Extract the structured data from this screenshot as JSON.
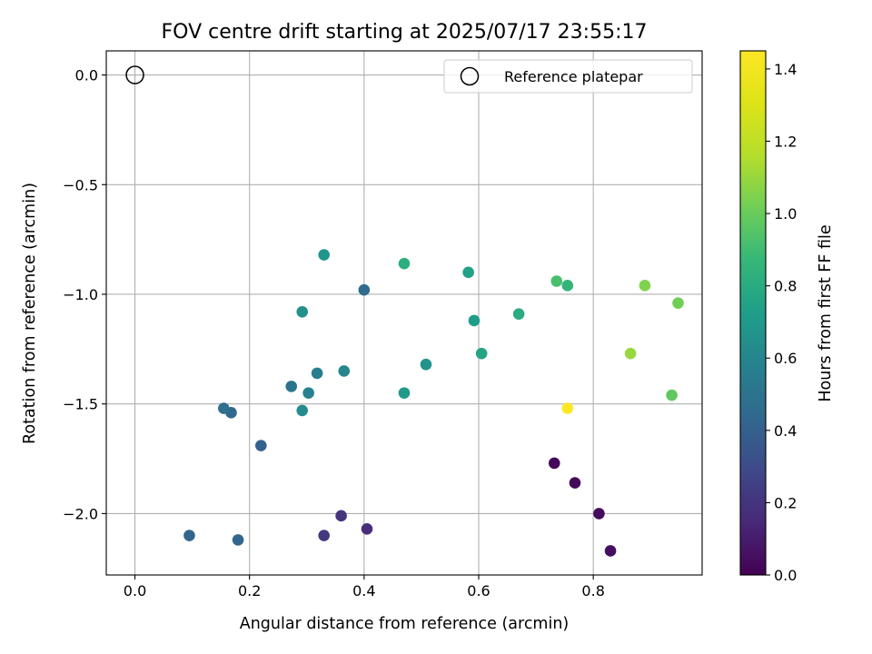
{
  "chart_data": {
    "type": "scatter",
    "title": "FOV centre drift starting at 2025/07/17 23:55:17",
    "xlabel": "Angular distance from reference (arcmin)",
    "ylabel": "Rotation from reference (arcmin)",
    "xlim": [
      -0.05,
      0.99
    ],
    "ylim": [
      -2.28,
      0.11
    ],
    "xticks": [
      0.0,
      0.2,
      0.4,
      0.6,
      0.8
    ],
    "xtick_labels": [
      "0.0",
      "0.2",
      "0.4",
      "0.6",
      "0.8"
    ],
    "yticks": [
      0.0,
      -0.5,
      -1.0,
      -1.5,
      -2.0
    ],
    "ytick_labels": [
      "0.0",
      "−0.5",
      "−1.0",
      "−1.5",
      "−2.0"
    ],
    "grid": true,
    "legend": {
      "position": "top-right",
      "entries": [
        "Reference platepar"
      ]
    },
    "colorbar": {
      "label": "Hours from first FF file",
      "colormap": "viridis",
      "range": [
        0.0,
        1.45
      ],
      "ticks": [
        0.0,
        0.2,
        0.4,
        0.6,
        0.8,
        1.0,
        1.2,
        1.4
      ],
      "tick_labels": [
        "0.0",
        "0.2",
        "0.4",
        "0.6",
        "0.8",
        "1.0",
        "1.2",
        "1.4"
      ]
    },
    "reference_point": {
      "name": "Reference platepar",
      "x": 0.0,
      "y": 0.0
    },
    "points": [
      {
        "x": 0.732,
        "y": -1.77,
        "hours": 0.02
      },
      {
        "x": 0.768,
        "y": -1.86,
        "hours": 0.03
      },
      {
        "x": 0.81,
        "y": -2.0,
        "hours": 0.04
      },
      {
        "x": 0.83,
        "y": -2.17,
        "hours": 0.05
      },
      {
        "x": 0.405,
        "y": -2.07,
        "hours": 0.17
      },
      {
        "x": 0.36,
        "y": -2.01,
        "hours": 0.2
      },
      {
        "x": 0.33,
        "y": -2.1,
        "hours": 0.22
      },
      {
        "x": 0.095,
        "y": -2.1,
        "hours": 0.42
      },
      {
        "x": 0.18,
        "y": -2.12,
        "hours": 0.43
      },
      {
        "x": 0.22,
        "y": -1.69,
        "hours": 0.4
      },
      {
        "x": 0.168,
        "y": -1.54,
        "hours": 0.44
      },
      {
        "x": 0.4,
        "y": -0.98,
        "hours": 0.46
      },
      {
        "x": 0.155,
        "y": -1.52,
        "hours": 0.48
      },
      {
        "x": 0.273,
        "y": -1.42,
        "hours": 0.5
      },
      {
        "x": 0.318,
        "y": -1.36,
        "hours": 0.55
      },
      {
        "x": 0.303,
        "y": -1.45,
        "hours": 0.58
      },
      {
        "x": 0.365,
        "y": -1.35,
        "hours": 0.6
      },
      {
        "x": 0.292,
        "y": -1.53,
        "hours": 0.63
      },
      {
        "x": 0.292,
        "y": -1.08,
        "hours": 0.65
      },
      {
        "x": 0.33,
        "y": -0.82,
        "hours": 0.68
      },
      {
        "x": 0.508,
        "y": -1.32,
        "hours": 0.67
      },
      {
        "x": 0.47,
        "y": -1.45,
        "hours": 0.7
      },
      {
        "x": 0.592,
        "y": -1.12,
        "hours": 0.72
      },
      {
        "x": 0.582,
        "y": -0.9,
        "hours": 0.74
      },
      {
        "x": 0.605,
        "y": -1.27,
        "hours": 0.76
      },
      {
        "x": 0.67,
        "y": -1.09,
        "hours": 0.8
      },
      {
        "x": 0.47,
        "y": -0.86,
        "hours": 0.82
      },
      {
        "x": 0.755,
        "y": -0.96,
        "hours": 0.86
      },
      {
        "x": 0.736,
        "y": -0.94,
        "hours": 0.92
      },
      {
        "x": 0.937,
        "y": -1.46,
        "hours": 0.98
      },
      {
        "x": 0.948,
        "y": -1.04,
        "hours": 1.02
      },
      {
        "x": 0.89,
        "y": -0.96,
        "hours": 1.05
      },
      {
        "x": 0.865,
        "y": -1.27,
        "hours": 1.1
      },
      {
        "x": 0.755,
        "y": -1.52,
        "hours": 1.45
      }
    ]
  }
}
